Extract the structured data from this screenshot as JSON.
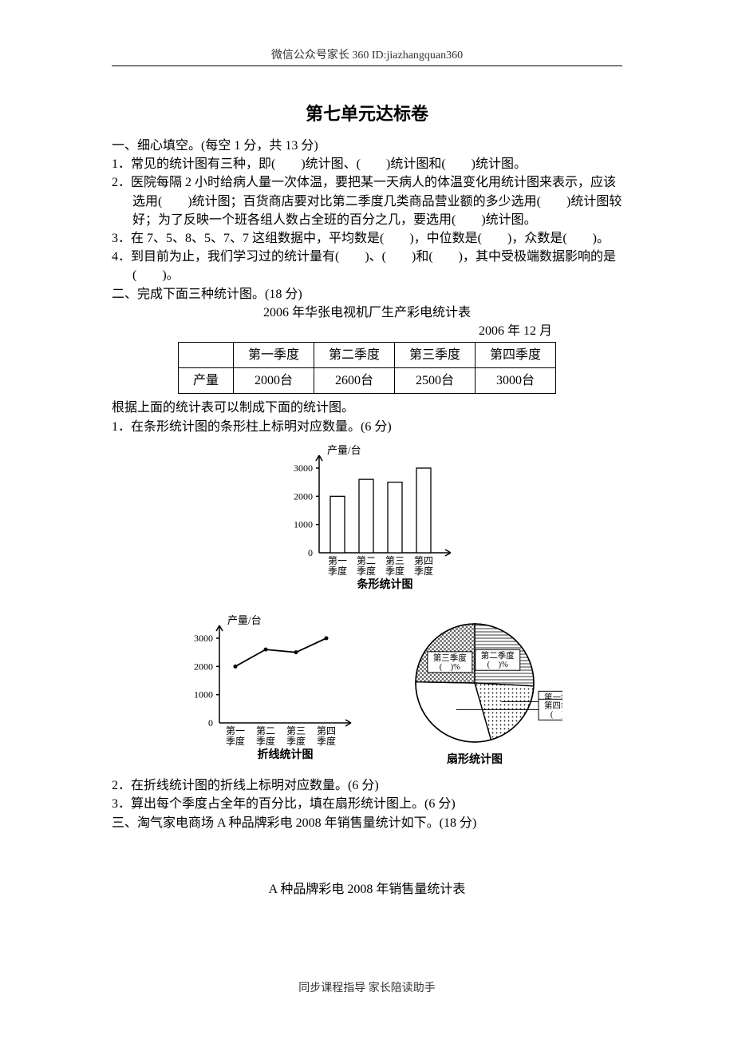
{
  "header": {
    "note": "微信公众号家长 360 ID:jiazhangquan360"
  },
  "title": "第七单元达标卷",
  "section1": {
    "heading": "一、细心填空。(每空 1 分，共 13 分)",
    "q1": "1．常见的统计图有三种，即(　　)统计图、(　　)统计图和(　　)统计图。",
    "q2": "2．医院每隔 2 小时给病人量一次体温，要把某一天病人的体温变化用统计图来表示，应该选用(　　)统计图；百货商店要对比第二季度几类商品营业额的多少选用(　　)统计图较好；为了反映一个班各组人数占全班的百分之几，要选用(　　)统计图。",
    "q3": "3．在 7、5、8、5、7、7 这组数据中，平均数是(　　)，中位数是(　　)，众数是(　　)。",
    "q4": "4．到目前为止，我们学习过的统计量有(　　)、(　　)和(　　)，其中受极端数据影响的是(　　)。"
  },
  "section2": {
    "heading": "二、完成下面三种统计图。(18 分)",
    "table_title": "2006 年华张电视机厂生产彩电统计表",
    "table_date": "2006 年 12 月",
    "table": {
      "row_header": "产量",
      "columns": [
        "第一季度",
        "第二季度",
        "第三季度",
        "第四季度"
      ],
      "values": [
        "2000台",
        "2600台",
        "2500台",
        "3000台"
      ]
    },
    "below_table": "根据上面的统计表可以制成下面的统计图。",
    "q1": "1．在条形统计图的条形柱上标明对应数量。(6 分)",
    "bar_chart": {
      "y_label_top": "产量/台",
      "y_ticks": [
        "3000",
        "2000",
        "1000",
        "0"
      ],
      "y_max": 3000,
      "categories": [
        "第一",
        "第二",
        "第三",
        "第四"
      ],
      "cat_line2": "季度",
      "values": [
        2000,
        2600,
        2500,
        3000
      ],
      "caption": "条形统计图",
      "axis_color": "#000000",
      "bar_fill": "#ffffff",
      "bar_stroke": "#000000"
    },
    "line_chart": {
      "y_label_top": "产量/台",
      "y_ticks": [
        "3000",
        "2000",
        "1000",
        "0"
      ],
      "y_max": 3000,
      "categories": [
        "第一",
        "第二",
        "第三",
        "第四"
      ],
      "cat_line2": "季度",
      "values": [
        2000,
        2600,
        2500,
        3000
      ],
      "caption": "折线统计图",
      "axis_color": "#000000",
      "line_color": "#000000"
    },
    "pie_chart": {
      "slices": [
        {
          "label_line1": "第二季度",
          "label_line2": "(　)%",
          "angle_start": -90,
          "angle_end": 3,
          "pattern": "horiz"
        },
        {
          "label_line1": "第一季度",
          "label_line2": "(　)%",
          "angle_start": 3,
          "angle_end": 74,
          "pattern": "dots"
        },
        {
          "label_line1": "第四季度",
          "label_line2": "(　)%",
          "angle_start": 74,
          "angle_end": 181,
          "pattern": "none"
        },
        {
          "label_line1": "第三季度",
          "label_line2": "(　)%",
          "angle_start": 181,
          "angle_end": 270,
          "pattern": "cross"
        }
      ],
      "stroke": "#000000",
      "caption": "扇形统计图"
    },
    "q2": "2．在折线统计图的折线上标明对应数量。(6 分)",
    "q3": "3．算出每个季度占全年的百分比，填在扇形统计图上。(6 分)"
  },
  "section3": {
    "heading": "三、淘气家电商场 A 种品牌彩电 2008 年销售量统计如下。(18 分)",
    "sub_title": "A 种品牌彩电 2008 年销售量统计表"
  },
  "footer": {
    "note": "同步课程指导  家长陪读助手"
  }
}
